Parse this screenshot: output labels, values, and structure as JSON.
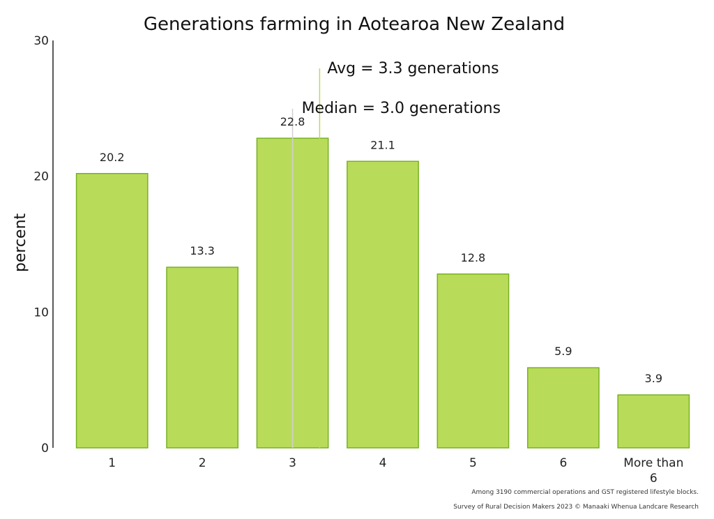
{
  "chart_data": {
    "type": "bar",
    "title": "Generations farming in Aotearoa New Zealand",
    "xlabel": "",
    "ylabel": "percent",
    "categories": [
      "1",
      "2",
      "3",
      "4",
      "5",
      "6",
      "More than 6"
    ],
    "values": [
      20.2,
      13.3,
      22.8,
      21.1,
      12.8,
      5.9,
      3.9
    ],
    "data_labels": [
      "20.2",
      "13.3",
      "22.8",
      "21.1",
      "12.8",
      "5.9",
      "3.9"
    ],
    "yticks": [
      "0",
      "10",
      "20",
      "30"
    ],
    "ylim": [
      0,
      30
    ],
    "grid": false,
    "legend": "none",
    "bar_color": "#b8dc5a",
    "bar_edge_color": "#78b020",
    "reference_lines": [
      {
        "label": "Avg = 3.3 generations",
        "x": 3.3,
        "color": "#b8dc5a"
      },
      {
        "label": "Median = 3.0 generations",
        "x": 3.0,
        "color": "#d0d0d0"
      }
    ]
  },
  "footnotes": [
    "Among 3190 commercial operations and GST registered lifestyle blocks.",
    "Survey of Rural Decision Makers 2023 © Manaaki Whenua Landcare Research"
  ]
}
